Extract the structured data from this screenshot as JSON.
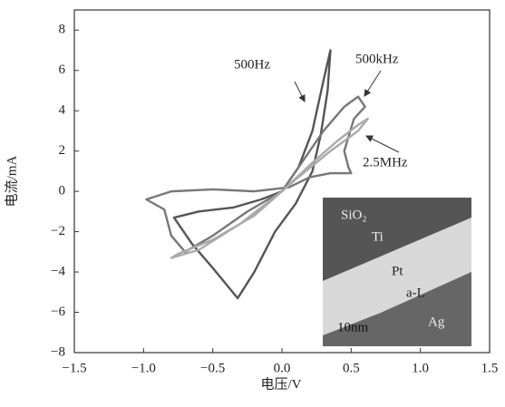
{
  "chart_data": {
    "type": "line",
    "xlabel": "电压/V",
    "ylabel": "电流/mA",
    "xlim": [
      -1.5,
      1.5
    ],
    "ylim": [
      -8,
      9
    ],
    "xticks": [
      {
        "value": -1.5,
        "label": "−1.5"
      },
      {
        "value": -1,
        "label": "−1.0"
      },
      {
        "value": -0.5,
        "label": "−0.5"
      },
      {
        "value": 0,
        "label": "0.0"
      },
      {
        "value": 0.5,
        "label": "0.5"
      },
      {
        "value": 1,
        "label": "1.0"
      },
      {
        "value": 1.5,
        "label": "1.5"
      }
    ],
    "yticks": [
      {
        "value": -8,
        "label": "−8"
      },
      {
        "value": -6,
        "label": "−6"
      },
      {
        "value": -4,
        "label": "−4"
      },
      {
        "value": -2,
        "label": "−2"
      },
      0,
      2,
      4,
      6,
      8
    ],
    "annotations": [
      "500Hz",
      "500kHz",
      "2.5MHz"
    ],
    "inset_labels": [
      "SiO₂",
      "Ti",
      "Pt",
      "a-L",
      "Ag",
      "10nm"
    ],
    "series": [
      {
        "color": "#555555",
        "x": [
          0,
          0.12,
          0.22,
          0.3,
          0.35,
          0.33,
          0.28,
          0.22,
          0.1,
          -0.05,
          -0.2,
          -0.32,
          -0.38,
          -0.5,
          -0.65,
          -0.78,
          -0.6,
          -0.35,
          -0.15,
          0
        ],
        "values": [
          0,
          1.2,
          3.0,
          5.5,
          7.0,
          5.0,
          2.8,
          1.0,
          -0.6,
          -2.0,
          -4.0,
          -5.3,
          -4.8,
          -3.8,
          -2.6,
          -1.3,
          -1.0,
          -0.8,
          -0.4,
          0
        ]
      },
      {
        "color": "#777777",
        "x": [
          0,
          0.15,
          0.3,
          0.45,
          0.55,
          0.6,
          0.52,
          0.45,
          0.48,
          0.5,
          0.35,
          0.2,
          0.05,
          -0.2,
          -0.5,
          -0.8,
          -0.98,
          -0.85,
          -0.8,
          -0.7,
          -0.5,
          -0.25,
          0
        ],
        "values": [
          0,
          1.5,
          3.0,
          4.2,
          4.7,
          4.2,
          3.6,
          2.0,
          1.2,
          0.9,
          0.9,
          0.7,
          0.2,
          0.0,
          0.1,
          0.0,
          -0.4,
          -0.9,
          -2.2,
          -3.0,
          -2.2,
          -1.0,
          0
        ]
      },
      {
        "color": "#aaaaaa",
        "x": [
          0,
          0.2,
          0.4,
          0.55,
          0.62,
          0.55,
          0.35,
          0.1,
          -0.2,
          -0.5,
          -0.75,
          -0.8,
          -0.6,
          -0.3,
          0
        ],
        "values": [
          0,
          1.3,
          2.5,
          3.3,
          3.6,
          3.0,
          2.0,
          0.6,
          -1.2,
          -2.4,
          -3.1,
          -3.3,
          -2.9,
          -1.6,
          0
        ]
      }
    ]
  }
}
